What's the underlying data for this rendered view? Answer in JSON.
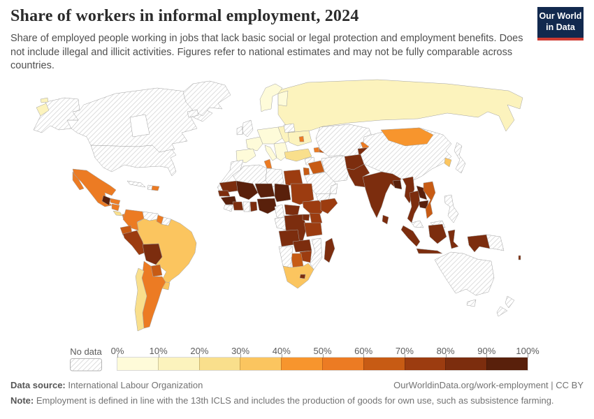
{
  "header": {
    "title": "Share of workers in informal employment, 2024",
    "subtitle": "Share of employed people working in jobs that lack basic social or legal protection and employment benefits. Does not include illegal and illicit activities. Figures refer to national estimates and may not be fully comparable across countries.",
    "logo": {
      "line1": "Our World",
      "line2": "in Data",
      "bg_color": "#12294e",
      "accent_color": "#cf3b32"
    }
  },
  "legend": {
    "no_data_label": "No data",
    "tick_labels": [
      "0%",
      "10%",
      "20%",
      "30%",
      "40%",
      "50%",
      "60%",
      "70%",
      "80%",
      "90%",
      "100%"
    ]
  },
  "footer": {
    "source_label": "Data source:",
    "source_text": " International Labour Organization",
    "right_text": "OurWorldinData.org/work-employment | CC BY",
    "note_label": "Note:",
    "note_text": " Employment is defined in line with the 13th ICLS and includes the production of goods for own use, such as subsistence farming."
  },
  "chart_data": {
    "type": "heatmap",
    "subtype": "choropleth-world-map",
    "title": "Share of workers in informal employment, 2024",
    "unit": "% of employed people",
    "year": "2024",
    "legend_position": "bottom",
    "no_data_style": "diagonal-hatch",
    "bands": [
      {
        "range": "0-10",
        "color": "#FEFBD9"
      },
      {
        "range": "10-20",
        "color": "#FCF3BD"
      },
      {
        "range": "20-30",
        "color": "#F9DF8C"
      },
      {
        "range": "30-40",
        "color": "#FBC55F"
      },
      {
        "range": "40-50",
        "color": "#F7952D"
      },
      {
        "range": "50-60",
        "color": "#EC7B23"
      },
      {
        "range": "60-70",
        "color": "#C75B14"
      },
      {
        "range": "70-80",
        "color": "#9C3C10"
      },
      {
        "range": "80-90",
        "color": "#7C2D0E"
      },
      {
        "range": "90-100",
        "color": "#59200B"
      }
    ],
    "regions": {
      "canada": "no-data",
      "united-states": "no-data",
      "greenland": "no-data",
      "iceland": "no-data",
      "russia-chukotka": "10-20",
      "mexico": "50-60",
      "guatemala": "90-100",
      "honduras": "50-60",
      "nicaragua": "50-60",
      "costa-rica": "20-30",
      "panama": "50-60",
      "cuba": "no-data",
      "haiti": "no-data",
      "dominican-republic": "50-60",
      "colombia": "50-60",
      "venezuela": "no-data",
      "guyana": "50-60",
      "suriname": "no-data",
      "ecuador": "60-70",
      "peru": "70-80",
      "bolivia": "80-90",
      "brazil": "30-40",
      "paraguay": "60-70",
      "uruguay": "30-40",
      "argentina": "50-60",
      "chile": "20-30",
      "scandinavia": "0-10",
      "finland": "0-10",
      "british-isles": "no-data",
      "france": "0-10",
      "iberia": "0-10",
      "central-europe": "0-10",
      "italy": "0-10",
      "balkans-greece": "0-10",
      "eastern-europe": "10-20",
      "belarus": "no-data",
      "ukraine": "10-20",
      "moldova": "50-60",
      "russia": "10-20",
      "turkey": "20-30",
      "armenia": "50-60",
      "azerbaijan": "60-70",
      "syria": "no-data",
      "iraq": "60-70",
      "jordan": "60-70",
      "saudi-arabia": "no-data",
      "yemen": "no-data",
      "oman": "no-data",
      "iran": "no-data",
      "kazakhstan-central-asia": "no-data",
      "kyrgyzstan": "50-60",
      "tajikistan": "80-90",
      "afghanistan": "80-90",
      "pakistan": "80-90",
      "india": "80-90",
      "bangladesh": "90-100",
      "sri-lanka": "80-90",
      "china": "no-data",
      "mongolia": "40-50",
      "south-korea": "30-40",
      "japan": "no-data",
      "myanmar": "80-90",
      "thailand": "80-90",
      "laos": "90-100",
      "cambodia": "90-100",
      "vietnam": "60-70",
      "malaysia": "no-data",
      "philippines": "no-data",
      "indonesia": "80-90",
      "papua-new-guinea": "no-data",
      "vanuatu": "80-90",
      "australia": "no-data",
      "new-zealand": "no-data",
      "morocco-western-sahara": "no-data",
      "algeria": "no-data",
      "tunisia": "50-60",
      "libya": "no-data",
      "egypt": "70-80",
      "sudan": "70-80",
      "mauritania": "80-90",
      "mali": "90-100",
      "niger": "90-100",
      "chad": "90-100",
      "senegal": "80-90",
      "guinea": "90-100",
      "liberia": "no-data",
      "cote-divoire": "80-90",
      "ghana": "no-data",
      "togo-benin": "80-90",
      "nigeria": "90-100",
      "cameroon": "no-data",
      "central-african-republic": "80-90",
      "gabon-congo": "no-data",
      "dr-congo": "80-90",
      "uganda": "80-90",
      "kenya": "70-80",
      "ethiopia": "70-80",
      "somalia": "70-80",
      "tanzania": "70-80",
      "angola": "80-90",
      "zambia": "80-90",
      "mozambique": "no-data",
      "zimbabwe": "70-80",
      "botswana": "60-70",
      "namibia": "no-data",
      "south-africa": "30-40",
      "lesotho": "80-90",
      "madagascar": "80-90"
    }
  }
}
